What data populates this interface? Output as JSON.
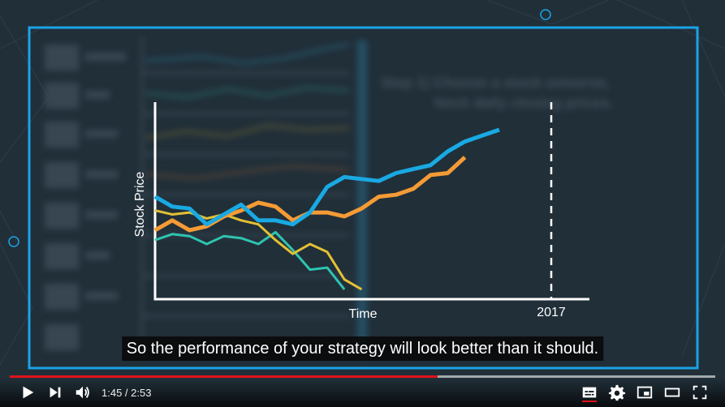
{
  "video": {
    "caption": "So the performance of your strategy will look better than it should.",
    "background_text": [
      "Step 1) Choose a stock universe,",
      "fetch daily closing prices."
    ]
  },
  "chart_data": {
    "type": "line",
    "xlabel": "Time",
    "ylabel": "Stock Price",
    "x_tick_labels": [
      "2017"
    ],
    "annotation": "dashed vertical line at 2017",
    "x": [
      0,
      1,
      2,
      3,
      4,
      5,
      6,
      7,
      8,
      9,
      10,
      11,
      12,
      13,
      14,
      15,
      16,
      17,
      18,
      19,
      20,
      21,
      22,
      23,
      24,
      25,
      26,
      27,
      28,
      29,
      30,
      31
    ],
    "series": [
      {
        "color": "#19a9e3",
        "values": [
          0.52,
          0.47,
          0.46,
          0.38,
          0.43,
          0.48,
          0.4,
          0.4,
          0.38,
          0.44,
          0.57,
          0.62,
          0.61,
          0.6,
          0.64,
          0.66,
          0.68,
          0.75,
          0.8,
          0.83,
          0.86,
          null,
          null,
          null,
          null,
          null,
          null,
          null,
          null,
          null,
          null,
          null
        ]
      },
      {
        "color": "#f59b35",
        "values": [
          0.35,
          0.4,
          0.35,
          0.37,
          0.42,
          0.45,
          0.49,
          0.47,
          0.4,
          0.44,
          0.44,
          0.42,
          0.46,
          0.52,
          0.53,
          0.56,
          0.63,
          0.64,
          0.72,
          null,
          null,
          null,
          null,
          null,
          null,
          null,
          null,
          null,
          null,
          null,
          null,
          null
        ]
      },
      {
        "color": "#e3c035",
        "values": [
          0.45,
          0.43,
          0.44,
          0.41,
          0.43,
          0.4,
          0.38,
          0.3,
          0.23,
          0.28,
          0.24,
          0.1,
          0.05,
          null,
          null,
          null,
          null,
          null,
          null,
          null,
          null,
          null,
          null,
          null,
          null,
          null,
          null,
          null,
          null,
          null,
          null,
          null
        ]
      },
      {
        "color": "#2ec4b0",
        "values": [
          0.3,
          0.33,
          0.32,
          0.28,
          0.32,
          0.31,
          0.28,
          0.34,
          0.25,
          0.15,
          0.16,
          0.05,
          null,
          null,
          null,
          null,
          null,
          null,
          null,
          null,
          null,
          null,
          null,
          null,
          null,
          null,
          null,
          null,
          null,
          null,
          null,
          null
        ]
      }
    ]
  },
  "player": {
    "current_time": "1:45",
    "duration": "2:53",
    "time_display": "1:45 / 2:53",
    "played_fraction": 0.607,
    "buffered_fraction": 1.0,
    "colors": {
      "progress": "#e0121a",
      "frame": "#1aa3e6"
    },
    "icons": [
      "play-icon",
      "next-icon",
      "volume-icon",
      "subtitles-icon",
      "settings-icon",
      "miniplayer-icon",
      "theater-icon",
      "fullscreen-icon"
    ]
  }
}
